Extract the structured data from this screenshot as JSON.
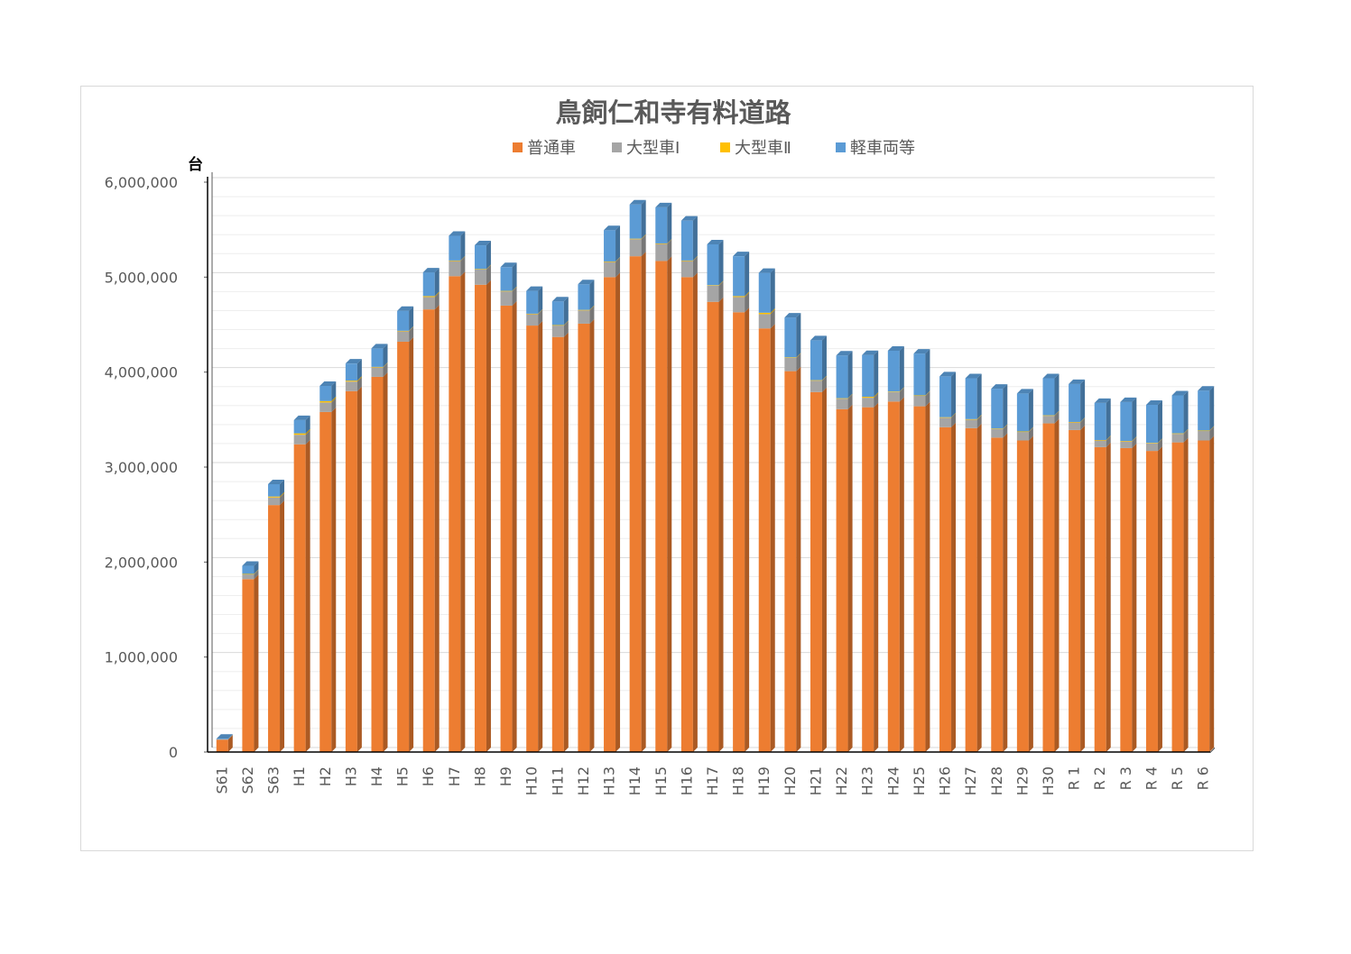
{
  "chart_data": {
    "type": "bar",
    "stacked": true,
    "title": "鳥飼仁和寺有料道路",
    "ylabel": "台",
    "ylim": [
      0,
      6000000
    ],
    "yticks": [
      0,
      1000000,
      2000000,
      3000000,
      4000000,
      5000000,
      6000000
    ],
    "ytick_labels": [
      "0",
      "1,000,000",
      "2,000,000",
      "3,000,000",
      "4,000,000",
      "5,000,000",
      "6,000,000"
    ],
    "grid": true,
    "legend_position": "top",
    "categories": [
      "S61",
      "S62",
      "S63",
      "H1",
      "H2",
      "H3",
      "H4",
      "H5",
      "H6",
      "H7",
      "H8",
      "H9",
      "H10",
      "H11",
      "H12",
      "H13",
      "H14",
      "H15",
      "H16",
      "H17",
      "H18",
      "H19",
      "H20",
      "H21",
      "H22",
      "H23",
      "H24",
      "H25",
      "H26",
      "H27",
      "H28",
      "H29",
      "H30",
      "R 1",
      "R 2",
      "R 3",
      "R 4",
      "R 5",
      "R 6"
    ],
    "series": [
      {
        "name": "普通車",
        "color": "#ed7d31",
        "values": [
          130000,
          1820000,
          2600000,
          3240000,
          3580000,
          3800000,
          3950000,
          4320000,
          4660000,
          5010000,
          4920000,
          4700000,
          4490000,
          4370000,
          4510000,
          5000000,
          5220000,
          5170000,
          5000000,
          4740000,
          4630000,
          4460000,
          4010000,
          3790000,
          3610000,
          3630000,
          3690000,
          3640000,
          3420000,
          3410000,
          3310000,
          3280000,
          3460000,
          3390000,
          3210000,
          3200000,
          3170000,
          3260000,
          3280000
        ]
      },
      {
        "name": "大型車Ⅰ",
        "color": "#a5a5a5",
        "values": [
          5000,
          50000,
          80000,
          100000,
          100000,
          100000,
          100000,
          110000,
          130000,
          160000,
          160000,
          150000,
          120000,
          120000,
          140000,
          160000,
          180000,
          180000,
          170000,
          170000,
          160000,
          150000,
          140000,
          120000,
          110000,
          100000,
          100000,
          110000,
          100000,
          90000,
          90000,
          90000,
          80000,
          80000,
          70000,
          70000,
          80000,
          90000,
          100000
        ]
      },
      {
        "name": "大型車Ⅱ",
        "color": "#ffc000",
        "values": [
          0,
          5000,
          10000,
          15000,
          15000,
          10000,
          5000,
          5000,
          10000,
          5000,
          5000,
          5000,
          5000,
          5000,
          5000,
          5000,
          5000,
          5000,
          5000,
          5000,
          10000,
          15000,
          5000,
          5000,
          5000,
          10000,
          5000,
          5000,
          5000,
          5000,
          5000,
          5000,
          5000,
          5000,
          5000,
          5000,
          5000,
          5000,
          5000
        ]
      },
      {
        "name": "軽車両等",
        "color": "#5b9bd5",
        "values": [
          5000,
          85000,
          130000,
          140000,
          160000,
          180000,
          195000,
          210000,
          250000,
          260000,
          250000,
          250000,
          240000,
          250000,
          270000,
          330000,
          360000,
          380000,
          420000,
          430000,
          420000,
          420000,
          420000,
          420000,
          450000,
          440000,
          430000,
          440000,
          430000,
          430000,
          420000,
          400000,
          390000,
          400000,
          390000,
          410000,
          400000,
          400000,
          420000
        ]
      }
    ]
  }
}
